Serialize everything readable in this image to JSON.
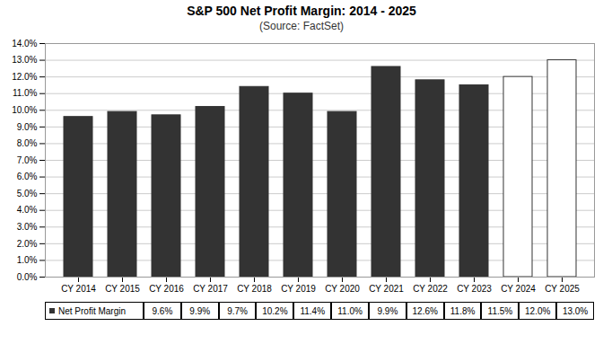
{
  "chart_data": {
    "type": "bar",
    "title": "S&P 500 Net Profit Margin: 2014 - 2025",
    "subtitle": "(Source: FactSet)",
    "categories": [
      "CY 2014",
      "CY 2015",
      "CY 2016",
      "CY 2017",
      "CY 2018",
      "CY 2019",
      "CY 2020",
      "CY 2021",
      "CY 2022",
      "CY 2023",
      "CY 2024",
      "CY 2025"
    ],
    "series": [
      {
        "name": "Net Profit Margin",
        "color": "#333333",
        "colors": [
          "#333333",
          "#333333",
          "#333333",
          "#333333",
          "#333333",
          "#333333",
          "#333333",
          "#333333",
          "#333333",
          "#333333",
          "#ffffff",
          "#ffffff"
        ],
        "values": [
          9.6,
          9.9,
          9.7,
          10.2,
          11.4,
          11.0,
          9.9,
          12.6,
          11.8,
          11.5,
          12.0,
          13.0
        ],
        "value_labels": [
          "9.6%",
          "9.9%",
          "9.7%",
          "10.2%",
          "11.4%",
          "11.0%",
          "9.9%",
          "12.6%",
          "11.8%",
          "11.5%",
          "12.0%",
          "13.0%"
        ]
      }
    ],
    "ylim": [
      0,
      14
    ],
    "yticks": [
      {
        "value": 0,
        "label": "0.0%"
      },
      {
        "value": 1,
        "label": "1.0%"
      },
      {
        "value": 2,
        "label": "2.0%"
      },
      {
        "value": 3,
        "label": "3.0%"
      },
      {
        "value": 4,
        "label": "4.0%"
      },
      {
        "value": 5,
        "label": "5.0%"
      },
      {
        "value": 6,
        "label": "6.0%"
      },
      {
        "value": 7,
        "label": "7.0%"
      },
      {
        "value": 8,
        "label": "8.0%"
      },
      {
        "value": 9,
        "label": "9.0%"
      },
      {
        "value": 10,
        "label": "10.0%"
      },
      {
        "value": 11,
        "label": "11.0%"
      },
      {
        "value": 12,
        "label": "12.0%"
      },
      {
        "value": 13,
        "label": "13.0%"
      },
      {
        "value": 14,
        "label": "14.0%"
      }
    ],
    "grid": true,
    "data_labels": true,
    "legend": "bottom"
  }
}
